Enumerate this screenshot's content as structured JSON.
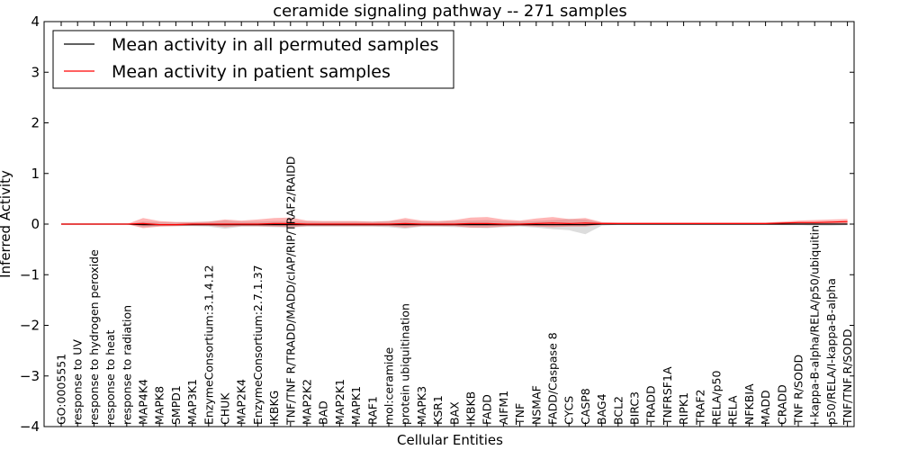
{
  "chart_data": {
    "type": "line",
    "title": "ceramide signaling pathway -- 271 samples",
    "xlabel": "Cellular Entities",
    "ylabel": "Inferred Activity",
    "ylim": [
      -4,
      4
    ],
    "yticks": [
      -4,
      -3,
      -2,
      -1,
      0,
      1,
      2,
      3,
      4
    ],
    "ytick_labels": [
      "−4",
      "−3",
      "−2",
      "−1",
      "0",
      "1",
      "2",
      "3",
      "4"
    ],
    "legend_position": "top-left",
    "categories": [
      "GO:0005551",
      "response to UV",
      "response to hydrogen peroxide",
      "response to heat",
      "response to radiation",
      "MAP4K4",
      "MAPK8",
      "SMPD1",
      "MAP3K1",
      "EnzymeConsortium:3.1.4.12",
      "CHUK",
      "MAP2K4",
      "EnzymeConsortium:2.7.1.37",
      "IKBKG",
      "TNF/TNF R/TRADD/MADD/cIAP/RIP/TRAF2/RAIDD",
      "MAP2K2",
      "BAD",
      "MAP2K1",
      "MAPK1",
      "RAF1",
      "mol:ceramide",
      "protein ubiquitination",
      "MAPK3",
      "KSR1",
      "BAX",
      "IKBKB",
      "FADD",
      "AIFM1",
      "TNF",
      "NSMAF",
      "FADD/Caspase 8",
      "CYCS",
      "CASP8",
      "BAG4",
      "BCL2",
      "BIRC3",
      "TRADD",
      "TNFRSF1A",
      "RIPK1",
      "TRAF2",
      "RELA/p50",
      "RELA",
      "NFKBIA",
      "MADD",
      "CRADD",
      "TNF R/SODD",
      "I-kappa-B-alpha/RELA/p50/ubiquitin",
      "p50/RELA/I-kappa-B-alpha",
      "TNF/TNF R/SODD"
    ],
    "series": [
      {
        "name": "Mean activity in all permuted samples",
        "color": "#000000",
        "values": [
          0,
          0,
          0,
          0,
          0,
          -0.01,
          -0.01,
          -0.01,
          -0.01,
          -0.01,
          -0.01,
          -0.01,
          -0.01,
          -0.01,
          -0.01,
          -0.01,
          -0.01,
          -0.01,
          -0.01,
          -0.01,
          -0.01,
          -0.01,
          -0.01,
          -0.01,
          -0.01,
          -0.01,
          -0.01,
          -0.01,
          -0.01,
          -0.01,
          -0.01,
          -0.01,
          -0.01,
          0,
          0,
          0,
          0,
          0,
          0,
          0,
          0,
          0,
          0,
          0,
          0,
          0,
          0,
          0,
          0
        ],
        "band_low": [
          0,
          0,
          0,
          0,
          0,
          -0.06,
          -0.04,
          -0.04,
          -0.04,
          -0.05,
          -0.09,
          -0.05,
          -0.05,
          -0.06,
          -0.07,
          -0.05,
          -0.05,
          -0.05,
          -0.05,
          -0.05,
          -0.06,
          -0.09,
          -0.05,
          -0.05,
          -0.06,
          -0.07,
          -0.08,
          -0.06,
          -0.05,
          -0.07,
          -0.1,
          -0.12,
          -0.2,
          -0.03,
          -0.01,
          -0.01,
          -0.01,
          -0.01,
          -0.01,
          -0.01,
          -0.01,
          -0.01,
          -0.01,
          -0.01,
          -0.02,
          -0.02,
          -0.03,
          -0.03,
          -0.02
        ],
        "band_high": [
          0,
          0,
          0,
          0,
          0,
          0.05,
          0.04,
          0.04,
          0.04,
          0.05,
          0.07,
          0.05,
          0.05,
          0.06,
          0.06,
          0.05,
          0.05,
          0.05,
          0.05,
          0.05,
          0.06,
          0.08,
          0.05,
          0.05,
          0.06,
          0.07,
          0.08,
          0.06,
          0.05,
          0.06,
          0.08,
          0.1,
          0.09,
          0.03,
          0.01,
          0.01,
          0.01,
          0.01,
          0.01,
          0.01,
          0.01,
          0.01,
          0.01,
          0.01,
          0.02,
          0.03,
          0.04,
          0.05,
          0.05
        ]
      },
      {
        "name": "Mean activity in patient samples",
        "color": "#ff0000",
        "values": [
          0,
          0,
          0,
          0,
          0,
          0.01,
          -0.01,
          -0.01,
          0,
          0,
          0,
          0,
          0,
          0.01,
          0.01,
          0,
          0,
          0,
          0,
          0,
          0,
          0.01,
          0,
          0,
          0,
          0.01,
          0.01,
          0,
          0,
          0.01,
          0.02,
          0.01,
          0.02,
          0.01,
          0.01,
          0.01,
          0.01,
          0.01,
          0.01,
          0.01,
          0.01,
          0.01,
          0.01,
          0.01,
          0.02,
          0.03,
          0.03,
          0.04,
          0.05
        ],
        "band_low": [
          0,
          0,
          0,
          0,
          0,
          -0.08,
          -0.05,
          -0.04,
          -0.03,
          -0.03,
          -0.06,
          -0.04,
          -0.04,
          -0.05,
          -0.06,
          -0.04,
          -0.04,
          -0.04,
          -0.04,
          -0.04,
          -0.04,
          -0.07,
          -0.04,
          -0.04,
          -0.04,
          -0.07,
          -0.07,
          -0.05,
          -0.03,
          -0.05,
          -0.06,
          -0.05,
          -0.05,
          -0.01,
          -0.01,
          -0.01,
          -0.01,
          -0.01,
          -0.01,
          -0.01,
          -0.01,
          -0.01,
          -0.01,
          -0.01,
          -0.01,
          -0.01,
          -0.01,
          -0.01,
          -0.01
        ],
        "band_high": [
          0,
          0,
          0,
          0,
          0,
          0.12,
          0.06,
          0.04,
          0.04,
          0.05,
          0.09,
          0.07,
          0.09,
          0.12,
          0.13,
          0.07,
          0.06,
          0.06,
          0.06,
          0.05,
          0.06,
          0.12,
          0.07,
          0.06,
          0.08,
          0.13,
          0.14,
          0.09,
          0.07,
          0.11,
          0.14,
          0.1,
          0.12,
          0.04,
          0.03,
          0.03,
          0.03,
          0.03,
          0.03,
          0.03,
          0.03,
          0.03,
          0.03,
          0.03,
          0.05,
          0.07,
          0.08,
          0.09,
          0.1
        ]
      }
    ]
  }
}
